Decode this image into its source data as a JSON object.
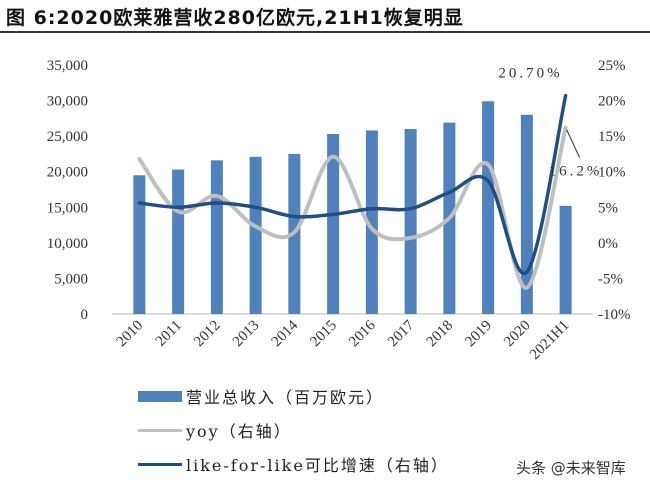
{
  "title": "图  6:2020欧莱雅营收280亿欧元,21H1恢复明显",
  "watermark": "头条 @未来智库",
  "chart_data": {
    "type": "bar+line",
    "title": "图  6:2020欧莱雅营收280亿欧元,21H1恢复明显",
    "categories": [
      "2010",
      "2011",
      "2012",
      "2013",
      "2014",
      "2015",
      "2016",
      "2017",
      "2018",
      "2019",
      "2020",
      "2021H1"
    ],
    "left_axis": {
      "range": [
        0,
        35000
      ],
      "ticks": [
        "0",
        "5,000",
        "10,000",
        "15,000",
        "20,000",
        "25,000",
        "30,000",
        "35,000"
      ],
      "tick_values": [
        0,
        5000,
        10000,
        15000,
        20000,
        25000,
        30000,
        35000
      ]
    },
    "right_axis": {
      "range": [
        -10,
        25
      ],
      "ticks": [
        "-10%",
        "-5%",
        "0%",
        "5%",
        "10%",
        "15%",
        "20%",
        "25%"
      ],
      "tick_values": [
        -10,
        -5,
        0,
        5,
        10,
        15,
        20,
        25
      ]
    },
    "series": [
      {
        "name": "营业总收入（百万欧元）",
        "type": "bar",
        "axis": "left",
        "color": "#4f81bd",
        "values": [
          19500,
          20300,
          21600,
          22100,
          22500,
          25300,
          25800,
          26000,
          26900,
          29900,
          28000,
          15200
        ]
      },
      {
        "name": "yoy（右轴）",
        "type": "line",
        "axis": "right",
        "color": "#bfbfbf",
        "values": [
          11.8,
          4.4,
          6.6,
          2.3,
          1.5,
          12.1,
          2.0,
          0.7,
          3.5,
          11.0,
          -6.3,
          16.2
        ]
      },
      {
        "name": "like-for-like可比增速（右轴）",
        "type": "line",
        "axis": "right",
        "color": "#1f4e89",
        "values": [
          5.6,
          5.0,
          5.6,
          5.0,
          3.7,
          4.0,
          4.8,
          4.8,
          7.1,
          8.7,
          -4.1,
          20.7
        ]
      }
    ],
    "annotations": [
      {
        "text": "20.70%",
        "series": "like-for-like可比增速（右轴）",
        "category": "2021H1"
      },
      {
        "text": "16.2%",
        "series": "yoy（右轴）",
        "category": "2021H1"
      }
    ],
    "legend": "bottom-left",
    "grid": false
  }
}
